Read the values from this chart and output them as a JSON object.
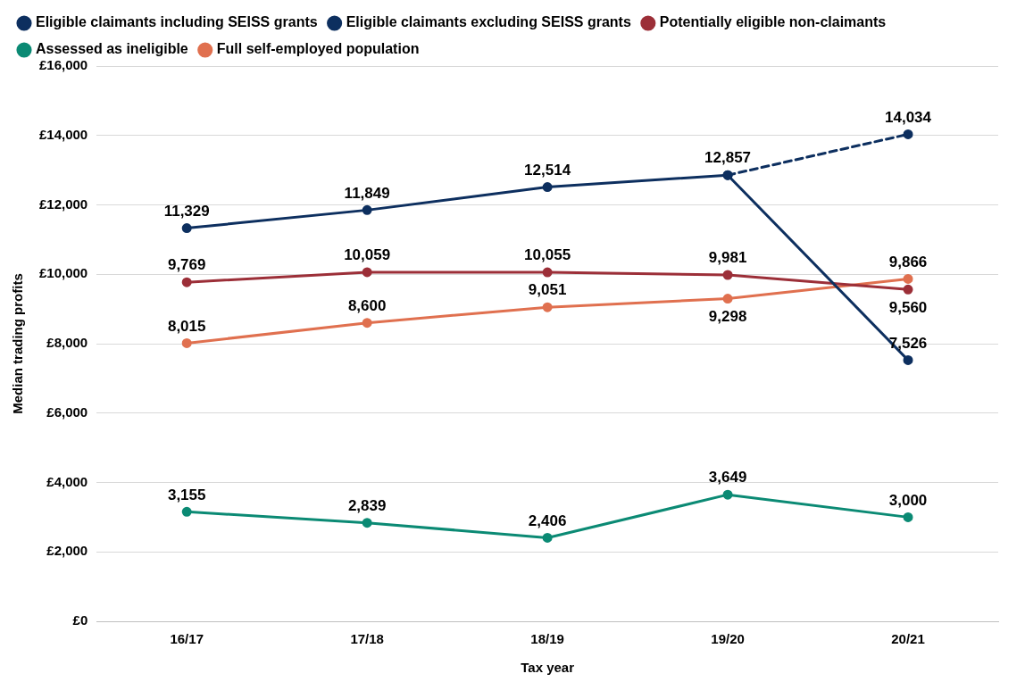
{
  "chart_data": {
    "type": "line",
    "xlabel": "Tax year",
    "ylabel": "Median trading profits",
    "categories": [
      "16/17",
      "17/18",
      "18/19",
      "19/20",
      "20/21"
    ],
    "series": [
      {
        "name": "Eligible claimants including SEISS grants",
        "color": "#0d2f5f",
        "line_style": "dashed",
        "values": [
          null,
          null,
          null,
          12857,
          14034
        ],
        "value_labels": [
          null,
          null,
          null,
          null,
          "14,034"
        ]
      },
      {
        "name": "Eligible claimants excluding SEISS grants",
        "color": "#0d2f5f",
        "line_style": "solid",
        "values": [
          11329,
          11849,
          12514,
          12857,
          7526
        ],
        "value_labels": [
          "11,329",
          "11,849",
          "12,514",
          "12,857",
          "7,526"
        ]
      },
      {
        "name": "Potentially eligible non-claimants",
        "color": "#9c2f38",
        "line_style": "solid",
        "values": [
          9769,
          10059,
          10055,
          9981,
          9560
        ],
        "value_labels": [
          "9,769",
          "10,059",
          "10,055",
          "9,981",
          "9,560"
        ]
      },
      {
        "name": "Assessed as ineligible",
        "color": "#0b8a74",
        "line_style": "solid",
        "values": [
          3155,
          2839,
          2406,
          3649,
          3000
        ],
        "value_labels": [
          "3,155",
          "2,839",
          "2,406",
          "3,649",
          "3,000"
        ]
      },
      {
        "name": "Full self-employed population",
        "color": "#e0704f",
        "line_style": "solid",
        "values": [
          8015,
          8600,
          9051,
          9298,
          9866
        ],
        "value_labels": [
          "8,015",
          "8,600",
          "9,051",
          "9,298",
          "9,866"
        ]
      }
    ],
    "ylim": [
      0,
      16000
    ],
    "yticks": [
      {
        "value": 0,
        "label": "£0"
      },
      {
        "value": 2000,
        "label": "£2,000"
      },
      {
        "value": 4000,
        "label": "£4,000"
      },
      {
        "value": 6000,
        "label": "£6,000"
      },
      {
        "value": 8000,
        "label": "£8,000"
      },
      {
        "value": 10000,
        "label": "£10,000"
      },
      {
        "value": 12000,
        "label": "£12,000"
      },
      {
        "value": 14000,
        "label": "£14,000"
      },
      {
        "value": 16000,
        "label": "£16,000"
      }
    ],
    "grid": "y",
    "legend": "top",
    "marker": "circle"
  }
}
